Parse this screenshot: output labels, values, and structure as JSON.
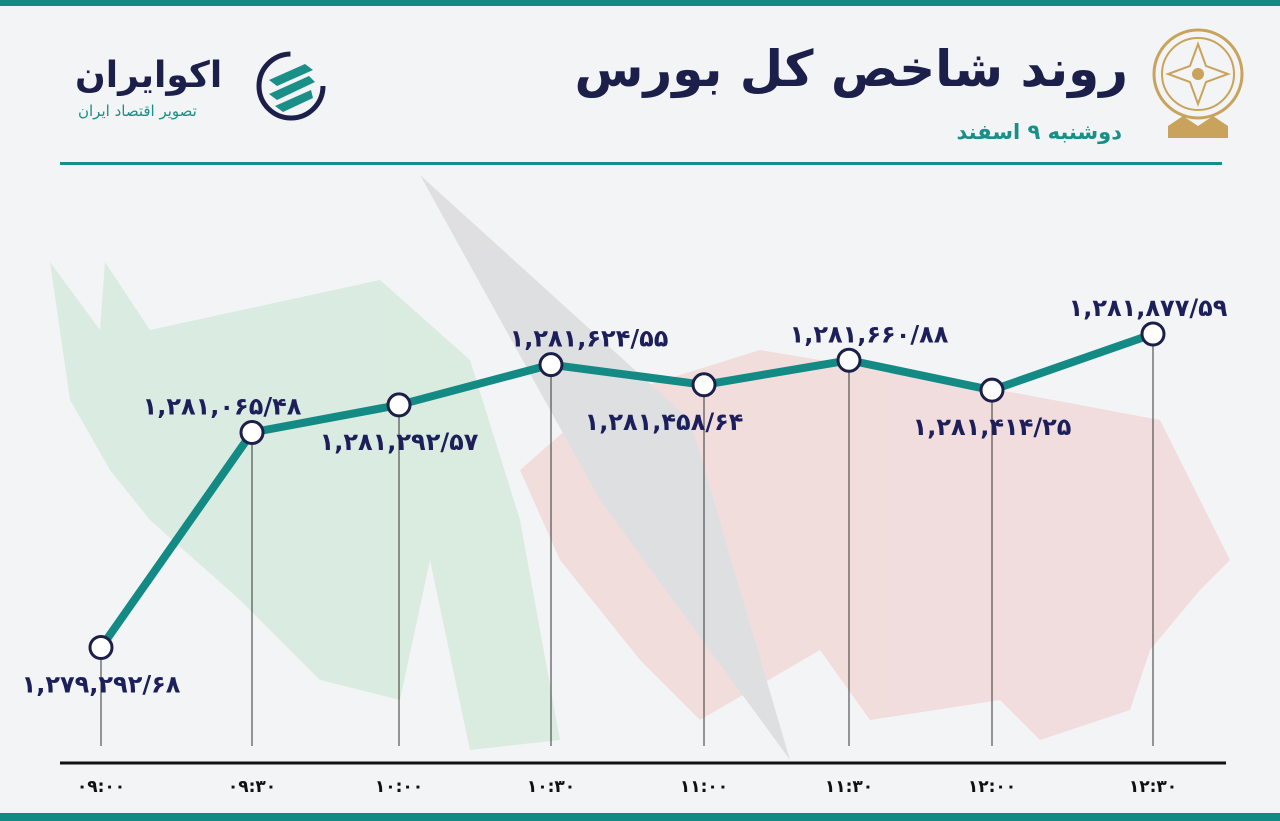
{
  "header": {
    "title": "روند شاخص کل بورس",
    "date": "دوشنبه ۹ اسفند",
    "brand_name": "اکوایران",
    "brand_tagline": "تصویر اقتصاد ایران"
  },
  "colors": {
    "line": "#138a84",
    "labels": "#1c1f5a",
    "accent": "#138a84",
    "bull": "#cfe6d6",
    "bear": "#f0d3d3"
  },
  "chart_data": {
    "type": "line",
    "title": "روند شاخص کل بورس",
    "xlabel": "",
    "ylabel": "",
    "categories": [
      "۰۹:۰۰",
      "۰۹:۳۰",
      "۱۰:۰۰",
      "۱۰:۳۰",
      "۱۱:۰۰",
      "۱۱:۳۰",
      "۱۲:۰۰",
      "۱۲:۳۰"
    ],
    "values": [
      1279292.68,
      1281065.48,
      1281292.57,
      1281624.55,
      1281458.64,
      1281660.88,
      1281414.25,
      1281877.59
    ],
    "data_labels": [
      "۱,۲۷۹,۲۹۲/۶۸",
      "۱,۲۸۱,۰۶۵/۴۸",
      "۱,۲۸۱,۲۹۲/۵۷",
      "۱,۲۸۱,۶۲۴/۵۵",
      "۱,۲۸۱,۴۵۸/۶۴",
      "۱,۲۸۱,۶۶۰/۸۸",
      "۱,۲۸۱,۴۱۴/۲۵",
      "۱,۲۸۱,۸۷۷/۵۹"
    ],
    "ylim": [
      1279000,
      1282100
    ],
    "grid": false,
    "legend": "none"
  }
}
